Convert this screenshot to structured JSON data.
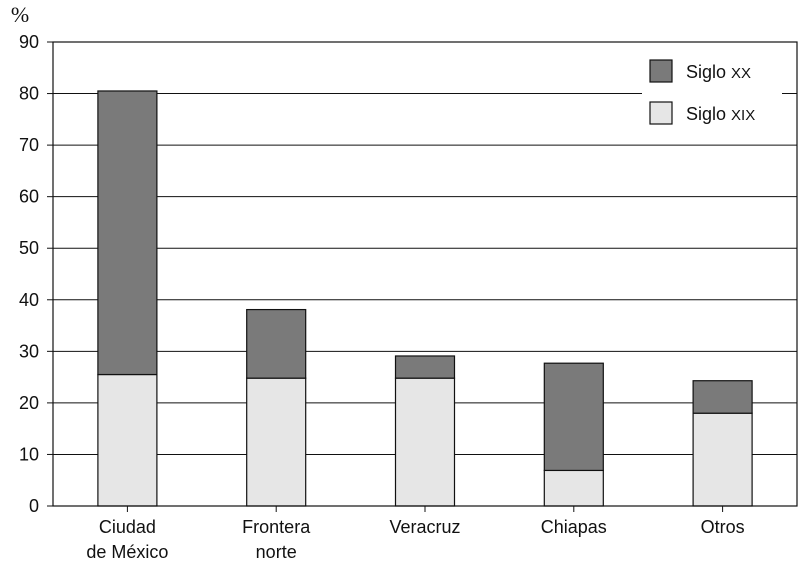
{
  "chart_data": {
    "type": "bar",
    "stacked": true,
    "title": "",
    "xlabel": "",
    "ylabel": "%",
    "ylim": [
      0,
      90
    ],
    "yticks": [
      "0",
      "10",
      "20",
      "30",
      "40",
      "50",
      "60",
      "70",
      "80",
      "90"
    ],
    "grid": true,
    "legend_position": "top-right",
    "categories": [
      [
        "Ciudad",
        "de México"
      ],
      [
        "Frontera",
        "norte"
      ],
      [
        "Veracruz"
      ],
      [
        "Chiapas"
      ],
      [
        "Otros"
      ]
    ],
    "series": [
      {
        "name": "Siglo XIX",
        "label_main": "Siglo ",
        "label_small": "XIX",
        "color": "#e6e6e6",
        "values": [
          25.5,
          24.8,
          24.8,
          6.9,
          18.0
        ]
      },
      {
        "name": "Siglo XX",
        "label_main": "Siglo ",
        "label_small": "XX",
        "color": "#7a7a7a",
        "values": [
          55.0,
          13.3,
          4.3,
          20.8,
          6.3
        ]
      }
    ],
    "legend_order": [
      1,
      0
    ]
  }
}
